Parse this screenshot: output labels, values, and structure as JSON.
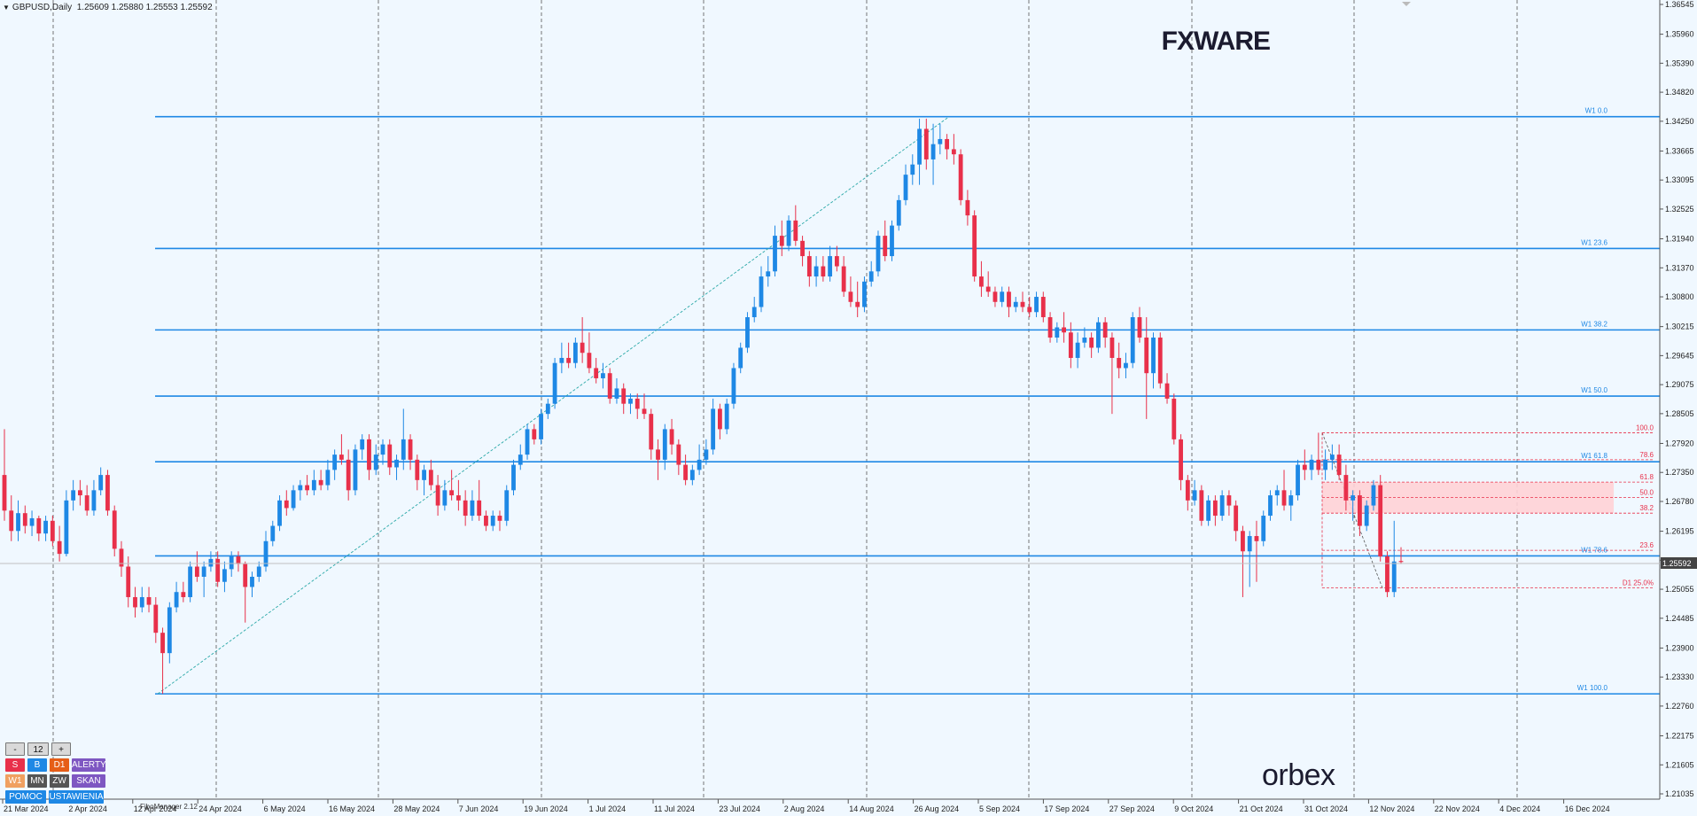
{
  "symbol": {
    "title": "GBPUSD,Daily",
    "ohlc": "1.25609 1.25880 1.25553 1.25592"
  },
  "brand": "FXWARE",
  "orbex_logo": "orbex",
  "fibo_manager": "FiboManager 2.12",
  "panel": {
    "minus": "-",
    "size": "12",
    "plus": "+",
    "s": "S",
    "b": "B",
    "d1": "D1",
    "alerts": "ALERTY",
    "w1": "W1",
    "mn": "MN",
    "zw": "ZW",
    "scan": "SKAN",
    "help": "POMOC",
    "settings": "USTAWIENIA"
  },
  "colors": {
    "bull": "#1e88e5",
    "bear": "#e8304a",
    "fib_line": "#1e88e5",
    "fib_zone": "#ffd1d6",
    "background": "#f0f8ff"
  },
  "chart_data": {
    "type": "candlestick",
    "ylim": [
      1.2102,
      1.366
    ],
    "grid": true,
    "y_ticks": [
      "1.36545",
      "1.35960",
      "1.35390",
      "1.34820",
      "1.34250",
      "1.33665",
      "1.33095",
      "1.32525",
      "1.31940",
      "1.31370",
      "1.30800",
      "1.30215",
      "1.29645",
      "1.29075",
      "1.28505",
      "1.27920",
      "1.27350",
      "1.26780",
      "1.26195",
      "1.25625",
      "1.25055",
      "1.24485",
      "1.23900",
      "1.23330",
      "1.22760",
      "1.22175",
      "1.21605",
      "1.21035"
    ],
    "x_ticks": [
      "21 Mar 2024",
      "2 Apr 2024",
      "12 Apr 2024",
      "24 Apr 2024",
      "6 May 2024",
      "16 May 2024",
      "28 May 2024",
      "7 Jun 2024",
      "19 Jun 2024",
      "1 Jul 2024",
      "11 Jul 2024",
      "23 Jul 2024",
      "2 Aug 2024",
      "14 Aug 2024",
      "26 Aug 2024",
      "5 Sep 2024",
      "17 Sep 2024",
      "27 Sep 2024",
      "9 Oct 2024",
      "21 Oct 2024",
      "31 Oct 2024",
      "12 Nov 2024",
      "22 Nov 2024",
      "4 Dec 2024",
      "16 Dec 2024"
    ],
    "current_price": "1.25592",
    "weekly_fib_levels": [
      {
        "label": "W1 0.0",
        "price": 1.3434
      },
      {
        "label": "W1 23.6",
        "price": 1.3175
      },
      {
        "label": "W1 38.2",
        "price": 1.3015
      },
      {
        "label": "W1 50.0",
        "price": 1.2885
      },
      {
        "label": "W1 61.8",
        "price": 1.2756
      },
      {
        "label": "W1 78.6",
        "price": 1.2571
      },
      {
        "label": "W1 100.0",
        "price": 1.23
      }
    ],
    "daily_fib_levels": [
      {
        "label": "100.0",
        "price": 1.2813
      },
      {
        "label": "78.6",
        "price": 1.276
      },
      {
        "label": "61.8",
        "price": 1.2716
      },
      {
        "label": "50.0",
        "price": 1.2686
      },
      {
        "label": "38.2",
        "price": 1.2655
      },
      {
        "label": "23.6",
        "price": 1.2582
      },
      {
        "label": "D1 25.0%",
        "price": 1.2508
      }
    ],
    "candles": [
      [
        1.273,
        1.282,
        1.264,
        1.266
      ],
      [
        1.266,
        1.269,
        1.26,
        1.262
      ],
      [
        1.262,
        1.268,
        1.26,
        1.2655
      ],
      [
        1.2655,
        1.267,
        1.2615,
        1.263
      ],
      [
        1.263,
        1.266,
        1.261,
        1.2645
      ],
      [
        1.2645,
        1.265,
        1.26,
        1.2615
      ],
      [
        1.2615,
        1.265,
        1.26,
        1.264
      ],
      [
        1.264,
        1.265,
        1.259,
        1.26
      ],
      [
        1.26,
        1.263,
        1.256,
        1.2575
      ],
      [
        1.2575,
        1.27,
        1.257,
        1.268
      ],
      [
        1.268,
        1.272,
        1.266,
        1.27
      ],
      [
        1.27,
        1.272,
        1.267,
        1.269
      ],
      [
        1.269,
        1.271,
        1.265,
        1.266
      ],
      [
        1.266,
        1.272,
        1.265,
        1.27
      ],
      [
        1.27,
        1.2745,
        1.269,
        1.273
      ],
      [
        1.273,
        1.274,
        1.265,
        1.266
      ],
      [
        1.266,
        1.267,
        1.257,
        1.2585
      ],
      [
        1.2585,
        1.26,
        1.253,
        1.255
      ],
      [
        1.255,
        1.257,
        1.247,
        1.249
      ],
      [
        1.249,
        1.251,
        1.245,
        1.247
      ],
      [
        1.247,
        1.251,
        1.246,
        1.249
      ],
      [
        1.249,
        1.251,
        1.246,
        1.2475
      ],
      [
        1.2475,
        1.249,
        1.24,
        1.242
      ],
      [
        1.242,
        1.243,
        1.23,
        1.238
      ],
      [
        1.238,
        1.248,
        1.236,
        1.247
      ],
      [
        1.247,
        1.252,
        1.246,
        1.25
      ],
      [
        1.25,
        1.252,
        1.248,
        1.249
      ],
      [
        1.249,
        1.256,
        1.248,
        1.255
      ],
      [
        1.255,
        1.258,
        1.252,
        1.253
      ],
      [
        1.253,
        1.256,
        1.249,
        1.255
      ],
      [
        1.255,
        1.258,
        1.254,
        1.2565
      ],
      [
        1.2565,
        1.258,
        1.251,
        1.252
      ],
      [
        1.252,
        1.256,
        1.25,
        1.2545
      ],
      [
        1.2545,
        1.258,
        1.253,
        1.257
      ],
      [
        1.257,
        1.258,
        1.254,
        1.2555
      ],
      [
        1.2555,
        1.256,
        1.244,
        1.251
      ],
      [
        1.251,
        1.254,
        1.249,
        1.253
      ],
      [
        1.253,
        1.256,
        1.252,
        1.255
      ],
      [
        1.255,
        1.262,
        1.254,
        1.26
      ],
      [
        1.26,
        1.264,
        1.259,
        1.263
      ],
      [
        1.263,
        1.269,
        1.262,
        1.268
      ],
      [
        1.268,
        1.27,
        1.265,
        1.2665
      ],
      [
        1.2665,
        1.271,
        1.266,
        1.27
      ],
      [
        1.27,
        1.272,
        1.268,
        1.271
      ],
      [
        1.271,
        1.273,
        1.269,
        1.27
      ],
      [
        1.27,
        1.274,
        1.269,
        1.272
      ],
      [
        1.272,
        1.274,
        1.27,
        1.271
      ],
      [
        1.271,
        1.276,
        1.27,
        1.274
      ],
      [
        1.274,
        1.278,
        1.272,
        1.277
      ],
      [
        1.277,
        1.281,
        1.275,
        1.276
      ],
      [
        1.276,
        1.278,
        1.268,
        1.27
      ],
      [
        1.27,
        1.279,
        1.269,
        1.278
      ],
      [
        1.278,
        1.281,
        1.276,
        1.28
      ],
      [
        1.28,
        1.281,
        1.272,
        1.274
      ],
      [
        1.274,
        1.279,
        1.273,
        1.277
      ],
      [
        1.277,
        1.28,
        1.275,
        1.279
      ],
      [
        1.279,
        1.28,
        1.273,
        1.2745
      ],
      [
        1.2745,
        1.277,
        1.272,
        1.276
      ],
      [
        1.276,
        1.286,
        1.274,
        1.28
      ],
      [
        1.28,
        1.281,
        1.274,
        1.276
      ],
      [
        1.276,
        1.277,
        1.27,
        1.272
      ],
      [
        1.272,
        1.275,
        1.269,
        1.274
      ],
      [
        1.274,
        1.276,
        1.27,
        1.271
      ],
      [
        1.271,
        1.273,
        1.265,
        1.267
      ],
      [
        1.267,
        1.272,
        1.266,
        1.27
      ],
      [
        1.27,
        1.274,
        1.268,
        1.269
      ],
      [
        1.269,
        1.272,
        1.266,
        1.268
      ],
      [
        1.268,
        1.27,
        1.263,
        1.265
      ],
      [
        1.265,
        1.27,
        1.264,
        1.268
      ],
      [
        1.268,
        1.272,
        1.264,
        1.265
      ],
      [
        1.265,
        1.266,
        1.262,
        1.263
      ],
      [
        1.263,
        1.266,
        1.262,
        1.265
      ],
      [
        1.265,
        1.266,
        1.262,
        1.264
      ],
      [
        1.264,
        1.271,
        1.263,
        1.27
      ],
      [
        1.27,
        1.276,
        1.269,
        1.275
      ],
      [
        1.275,
        1.279,
        1.274,
        1.277
      ],
      [
        1.277,
        1.283,
        1.276,
        1.282
      ],
      [
        1.282,
        1.283,
        1.279,
        1.28
      ],
      [
        1.28,
        1.286,
        1.279,
        1.285
      ],
      [
        1.285,
        1.288,
        1.284,
        1.287
      ],
      [
        1.287,
        1.296,
        1.286,
        1.295
      ],
      [
        1.295,
        1.299,
        1.293,
        1.296
      ],
      [
        1.296,
        1.299,
        1.294,
        1.295
      ],
      [
        1.295,
        1.3,
        1.294,
        1.299
      ],
      [
        1.299,
        1.304,
        1.295,
        1.297
      ],
      [
        1.297,
        1.301,
        1.293,
        1.294
      ],
      [
        1.294,
        1.296,
        1.291,
        1.292
      ],
      [
        1.292,
        1.295,
        1.29,
        1.293
      ],
      [
        1.293,
        1.294,
        1.287,
        1.288
      ],
      [
        1.288,
        1.292,
        1.287,
        1.29
      ],
      [
        1.29,
        1.291,
        1.285,
        1.287
      ],
      [
        1.287,
        1.289,
        1.285,
        1.288
      ],
      [
        1.288,
        1.289,
        1.284,
        1.286
      ],
      [
        1.286,
        1.289,
        1.284,
        1.285
      ],
      [
        1.285,
        1.286,
        1.276,
        1.278
      ],
      [
        1.278,
        1.28,
        1.272,
        1.276
      ],
      [
        1.276,
        1.283,
        1.274,
        1.282
      ],
      [
        1.282,
        1.284,
        1.277,
        1.279
      ],
      [
        1.279,
        1.28,
        1.273,
        1.275
      ],
      [
        1.275,
        1.277,
        1.271,
        1.272
      ],
      [
        1.272,
        1.275,
        1.271,
        1.274
      ],
      [
        1.274,
        1.279,
        1.273,
        1.276
      ],
      [
        1.276,
        1.28,
        1.275,
        1.278
      ],
      [
        1.278,
        1.288,
        1.277,
        1.286
      ],
      [
        1.286,
        1.287,
        1.28,
        1.282
      ],
      [
        1.282,
        1.288,
        1.281,
        1.287
      ],
      [
        1.287,
        1.295,
        1.286,
        1.294
      ],
      [
        1.294,
        1.299,
        1.293,
        1.298
      ],
      [
        1.298,
        1.305,
        1.297,
        1.304
      ],
      [
        1.304,
        1.308,
        1.303,
        1.306
      ],
      [
        1.306,
        1.314,
        1.305,
        1.312
      ],
      [
        1.312,
        1.316,
        1.31,
        1.313
      ],
      [
        1.313,
        1.322,
        1.312,
        1.32
      ],
      [
        1.32,
        1.323,
        1.316,
        1.318
      ],
      [
        1.318,
        1.324,
        1.317,
        1.323
      ],
      [
        1.323,
        1.326,
        1.318,
        1.319
      ],
      [
        1.319,
        1.32,
        1.314,
        1.316
      ],
      [
        1.316,
        1.317,
        1.31,
        1.312
      ],
      [
        1.312,
        1.316,
        1.31,
        1.314
      ],
      [
        1.314,
        1.316,
        1.311,
        1.312
      ],
      [
        1.312,
        1.318,
        1.311,
        1.316
      ],
      [
        1.316,
        1.318,
        1.313,
        1.314
      ],
      [
        1.314,
        1.316,
        1.308,
        1.309
      ],
      [
        1.309,
        1.312,
        1.306,
        1.307
      ],
      [
        1.307,
        1.311,
        1.304,
        1.306
      ],
      [
        1.306,
        1.312,
        1.305,
        1.311
      ],
      [
        1.311,
        1.315,
        1.31,
        1.313
      ],
      [
        1.313,
        1.321,
        1.312,
        1.32
      ],
      [
        1.32,
        1.323,
        1.315,
        1.316
      ],
      [
        1.316,
        1.323,
        1.315,
        1.322
      ],
      [
        1.322,
        1.328,
        1.321,
        1.327
      ],
      [
        1.327,
        1.334,
        1.326,
        1.332
      ],
      [
        1.332,
        1.336,
        1.33,
        1.334
      ],
      [
        1.334,
        1.343,
        1.33,
        1.341
      ],
      [
        1.341,
        1.343,
        1.333,
        1.335
      ],
      [
        1.335,
        1.342,
        1.33,
        1.338
      ],
      [
        1.338,
        1.342,
        1.336,
        1.339
      ],
      [
        1.339,
        1.34,
        1.335,
        1.337
      ],
      [
        1.337,
        1.34,
        1.334,
        1.336
      ],
      [
        1.336,
        1.337,
        1.326,
        1.327
      ],
      [
        1.327,
        1.329,
        1.322,
        1.324
      ],
      [
        1.324,
        1.325,
        1.311,
        1.312
      ],
      [
        1.312,
        1.315,
        1.308,
        1.31
      ],
      [
        1.31,
        1.313,
        1.308,
        1.309
      ],
      [
        1.309,
        1.31,
        1.306,
        1.307
      ],
      [
        1.307,
        1.31,
        1.306,
        1.309
      ],
      [
        1.309,
        1.31,
        1.304,
        1.306
      ],
      [
        1.306,
        1.308,
        1.305,
        1.307
      ],
      [
        1.307,
        1.309,
        1.305,
        1.306
      ],
      [
        1.306,
        1.308,
        1.304,
        1.305
      ],
      [
        1.305,
        1.309,
        1.304,
        1.308
      ],
      [
        1.308,
        1.309,
        1.303,
        1.304
      ],
      [
        1.304,
        1.305,
        1.299,
        1.3
      ],
      [
        1.3,
        1.303,
        1.299,
        1.302
      ],
      [
        1.302,
        1.305,
        1.299,
        1.301
      ],
      [
        1.301,
        1.303,
        1.294,
        1.296
      ],
      [
        1.296,
        1.301,
        1.294,
        1.299
      ],
      [
        1.299,
        1.302,
        1.298,
        1.3
      ],
      [
        1.3,
        1.301,
        1.296,
        1.298
      ],
      [
        1.298,
        1.304,
        1.297,
        1.303
      ],
      [
        1.303,
        1.304,
        1.298,
        1.3
      ],
      [
        1.3,
        1.301,
        1.285,
        1.296
      ],
      [
        1.296,
        1.299,
        1.292,
        1.294
      ],
      [
        1.294,
        1.297,
        1.292,
        1.295
      ],
      [
        1.295,
        1.305,
        1.294,
        1.304
      ],
      [
        1.304,
        1.306,
        1.299,
        1.3
      ],
      [
        1.3,
        1.304,
        1.284,
        1.293
      ],
      [
        1.293,
        1.301,
        1.29,
        1.3
      ],
      [
        1.3,
        1.301,
        1.29,
        1.291
      ],
      [
        1.291,
        1.293,
        1.287,
        1.288
      ],
      [
        1.288,
        1.289,
        1.279,
        1.28
      ],
      [
        1.28,
        1.281,
        1.27,
        1.272
      ],
      [
        1.272,
        1.273,
        1.266,
        1.268
      ],
      [
        1.268,
        1.272,
        1.267,
        1.27
      ],
      [
        1.27,
        1.271,
        1.263,
        1.264
      ],
      [
        1.264,
        1.269,
        1.263,
        1.268
      ],
      [
        1.268,
        1.269,
        1.263,
        1.265
      ],
      [
        1.265,
        1.27,
        1.264,
        1.269
      ],
      [
        1.269,
        1.27,
        1.265,
        1.267
      ],
      [
        1.267,
        1.268,
        1.26,
        1.262
      ],
      [
        1.262,
        1.263,
        1.249,
        1.258
      ],
      [
        1.258,
        1.262,
        1.251,
        1.261
      ],
      [
        1.261,
        1.264,
        1.252,
        1.26
      ],
      [
        1.26,
        1.266,
        1.259,
        1.265
      ],
      [
        1.265,
        1.27,
        1.264,
        1.269
      ],
      [
        1.269,
        1.271,
        1.267,
        1.27
      ],
      [
        1.27,
        1.274,
        1.266,
        1.267
      ],
      [
        1.267,
        1.27,
        1.264,
        1.269
      ],
      [
        1.269,
        1.276,
        1.268,
        1.275
      ],
      [
        1.275,
        1.278,
        1.272,
        1.274
      ],
      [
        1.274,
        1.277,
        1.272,
        1.276
      ],
      [
        1.276,
        1.2813,
        1.273,
        1.274
      ],
      [
        1.274,
        1.278,
        1.272,
        1.276
      ],
      [
        1.276,
        1.279,
        1.274,
        1.277
      ],
      [
        1.277,
        1.279,
        1.272,
        1.273
      ],
      [
        1.273,
        1.275,
        1.266,
        1.268
      ],
      [
        1.268,
        1.27,
        1.264,
        1.269
      ],
      [
        1.269,
        1.27,
        1.261,
        1.263
      ],
      [
        1.263,
        1.268,
        1.262,
        1.267
      ],
      [
        1.267,
        1.272,
        1.266,
        1.271
      ],
      [
        1.271,
        1.273,
        1.256,
        1.257
      ],
      [
        1.257,
        1.258,
        1.249,
        1.25
      ],
      [
        1.25,
        1.264,
        1.249,
        1.256
      ],
      [
        1.2561,
        1.2588,
        1.2555,
        1.2559
      ]
    ]
  }
}
